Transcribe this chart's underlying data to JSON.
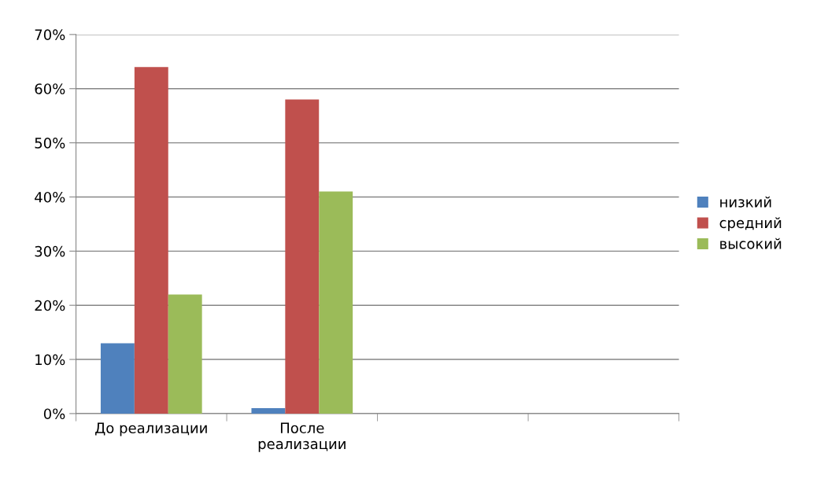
{
  "chart_data": {
    "type": "bar",
    "categories": [
      "До реализации",
      "После\nреализации",
      null,
      null
    ],
    "series": [
      {
        "name": "низкий",
        "color": "#4f81bd",
        "values": [
          13,
          1,
          null,
          null
        ]
      },
      {
        "name": "средний",
        "color": "#c0504d",
        "values": [
          64,
          58,
          null,
          null
        ]
      },
      {
        "name": "высокий",
        "color": "#9bbb59",
        "values": [
          22,
          41,
          null,
          null
        ]
      }
    ],
    "ylim": [
      0,
      70
    ],
    "yticks": [
      {
        "value": 0,
        "label": "0%"
      },
      {
        "value": 10,
        "label": "10%"
      },
      {
        "value": 20,
        "label": "20%"
      },
      {
        "value": 30,
        "label": "30%"
      },
      {
        "value": 40,
        "label": "40%"
      },
      {
        "value": 50,
        "label": "50%"
      },
      {
        "value": 60,
        "label": "60%"
      },
      {
        "value": 70,
        "label": "70%"
      }
    ],
    "grid": "y",
    "legend": "right"
  }
}
